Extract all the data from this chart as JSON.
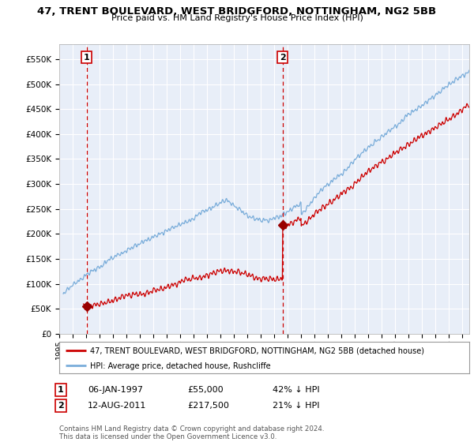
{
  "title": "47, TRENT BOULEVARD, WEST BRIDGFORD, NOTTINGHAM, NG2 5BB",
  "subtitle": "Price paid vs. HM Land Registry's House Price Index (HPI)",
  "ylabel_ticks": [
    "£0",
    "£50K",
    "£100K",
    "£150K",
    "£200K",
    "£250K",
    "£300K",
    "£350K",
    "£400K",
    "£450K",
    "£500K",
    "£550K"
  ],
  "ylabel_values": [
    0,
    50000,
    100000,
    150000,
    200000,
    250000,
    300000,
    350000,
    400000,
    450000,
    500000,
    550000
  ],
  "ylim": [
    0,
    580000
  ],
  "xlim_start": 1995.3,
  "xlim_end": 2025.5,
  "sale1_year": 1997.03,
  "sale1_price": 55000,
  "sale1_label": "1",
  "sale1_date": "06-JAN-1997",
  "sale1_price_str": "£55,000",
  "sale1_hpi_pct": "42% ↓ HPI",
  "sale2_year": 2011.62,
  "sale2_price": 217500,
  "sale2_label": "2",
  "sale2_date": "12-AUG-2011",
  "sale2_price_str": "£217,500",
  "sale2_hpi_pct": "21% ↓ HPI",
  "legend_property": "47, TRENT BOULEVARD, WEST BRIDGFORD, NOTTINGHAM, NG2 5BB (detached house)",
  "legend_hpi": "HPI: Average price, detached house, Rushcliffe",
  "footer": "Contains HM Land Registry data © Crown copyright and database right 2024.\nThis data is licensed under the Open Government Licence v3.0.",
  "property_line_color": "#cc0000",
  "hpi_line_color": "#7aadda",
  "background_color": "#e8eef8",
  "grid_color": "#ffffff",
  "dashed_line_color": "#cc0000",
  "marker_color": "#990000"
}
